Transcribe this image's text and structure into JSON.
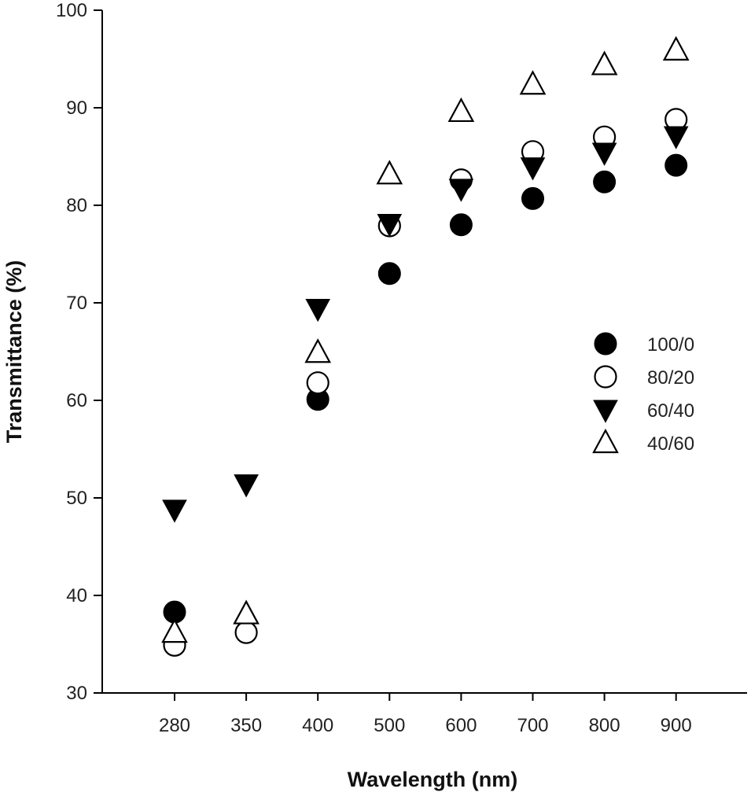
{
  "chart_data": {
    "type": "scatter",
    "title": "",
    "xlabel": "Wavelength (nm)",
    "ylabel": "Transmittance (%)",
    "categories": [
      "280",
      "350",
      "400",
      "500",
      "600",
      "700",
      "800",
      "900"
    ],
    "ylim": [
      30,
      100
    ],
    "yticks": [
      "30",
      "40",
      "50",
      "60",
      "70",
      "80",
      "90",
      "100"
    ],
    "grid": false,
    "legend_position": "right",
    "series": [
      {
        "name": "100/0",
        "marker": "filled-circle",
        "values": [
          38.3,
          null,
          60.1,
          73.0,
          78.0,
          80.7,
          82.4,
          84.1
        ]
      },
      {
        "name": "80/20",
        "marker": "open-circle",
        "values": [
          34.9,
          36.2,
          61.8,
          77.9,
          82.6,
          85.5,
          87.0,
          88.8
        ]
      },
      {
        "name": "60/40",
        "marker": "filled-triangle-down",
        "values": [
          48.8,
          51.4,
          69.4,
          78.1,
          81.7,
          83.9,
          85.4,
          87.1
        ]
      },
      {
        "name": "40/60",
        "marker": "open-triangle-up",
        "values": [
          36.2,
          38.1,
          64.9,
          83.2,
          89.6,
          92.4,
          94.4,
          95.9
        ]
      }
    ]
  },
  "colors": {
    "axis": "#000000",
    "marker_fill": "#000000",
    "marker_open_fill": "#ffffff"
  }
}
